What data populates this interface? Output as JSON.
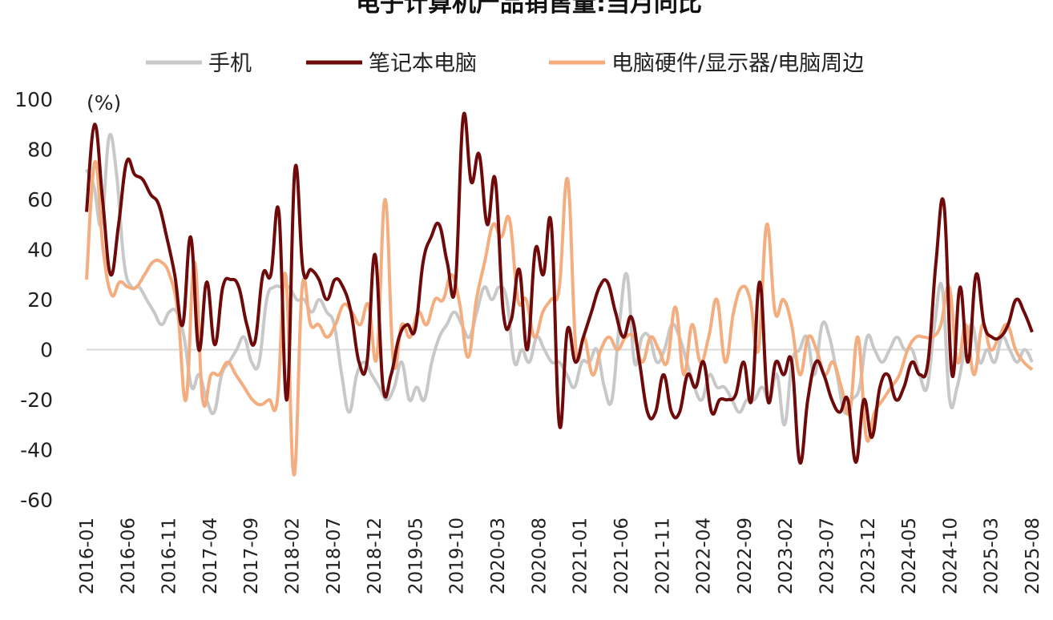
{
  "chart_data": {
    "type": "line",
    "title": "电子计算机产品销售量:当月同比",
    "unit_label": "(%)",
    "ylim": [
      -60,
      100
    ],
    "yticks": [
      "100",
      "80",
      "60",
      "40",
      "20",
      "0",
      "-20",
      "-40",
      "-60"
    ],
    "x_tick_labels": [
      "2016-01",
      "2016-06",
      "2016-11",
      "2017-04",
      "2017-09",
      "2018-02",
      "2018-07",
      "2018-12",
      "2019-05",
      "2019-10",
      "2020-03",
      "2020-08",
      "2021-01",
      "2021-06",
      "2021-11",
      "2022-04",
      "2022-09",
      "2023-02",
      "2023-07",
      "2023-12",
      "2024-05",
      "2024-10",
      "2025-03",
      "2025-08"
    ],
    "x_start": "2016-01",
    "x_end": "2025-08",
    "series": [
      {
        "name": "手机",
        "color": "#c8c8c8",
        "values": [
          72,
          65,
          50,
          85,
          70,
          35,
          25,
          25,
          20,
          15,
          10,
          15,
          15,
          5,
          -15,
          -10,
          -20,
          -25,
          -10,
          -5,
          0,
          5,
          -5,
          -5,
          20,
          25,
          25,
          25,
          20,
          20,
          15,
          20,
          15,
          10,
          -10,
          -25,
          -10,
          -5,
          -10,
          -15,
          -20,
          -15,
          -5,
          -20,
          -15,
          -20,
          -5,
          5,
          10,
          15,
          10,
          5,
          15,
          25,
          20,
          25,
          20,
          -5,
          0,
          -5,
          5,
          0,
          -5,
          -5,
          -10,
          -15,
          -5,
          -5,
          0,
          -15,
          -20,
          10,
          30,
          -5,
          5,
          5,
          -5,
          0,
          10,
          5,
          -5,
          -15,
          -20,
          -10,
          -15,
          -15,
          -20,
          -25,
          -20,
          -20,
          -15,
          -20,
          -10,
          -30,
          -5,
          0,
          5,
          -10,
          10,
          5,
          -10,
          -25,
          -20,
          -15,
          5,
          0,
          -5,
          0,
          5,
          0,
          0,
          -10,
          -15,
          10,
          25,
          -20,
          -15,
          0,
          10,
          -5,
          0,
          -5,
          5,
          0,
          -5,
          0,
          -5
        ]
      },
      {
        "name": "笔记本电脑",
        "color": "#6e0a0a",
        "values": [
          55,
          90,
          60,
          30,
          50,
          75,
          70,
          68,
          62,
          58,
          45,
          30,
          10,
          45,
          0,
          27,
          2,
          25,
          28,
          25,
          10,
          3,
          30,
          30,
          55,
          -20,
          72,
          32,
          32,
          28,
          20,
          28,
          25,
          15,
          -5,
          -5,
          38,
          -15,
          -10,
          5,
          10,
          8,
          35,
          45,
          50,
          35,
          25,
          93,
          67,
          78,
          50,
          68,
          15,
          12,
          32,
          0,
          40,
          30,
          50,
          -30,
          8,
          -5,
          5,
          15,
          25,
          27,
          15,
          5,
          13,
          -5,
          -25,
          -25,
          -10,
          -25,
          -25,
          -10,
          -15,
          -5,
          -25,
          -20,
          -20,
          -18,
          -5,
          -20,
          27,
          -20,
          -5,
          -10,
          -5,
          -45,
          -20,
          -5,
          -10,
          -20,
          -25,
          -20,
          -45,
          -20,
          -35,
          -15,
          -10,
          -20,
          -15,
          -5,
          -10,
          -5,
          35,
          58,
          -10,
          25,
          -5,
          30,
          10,
          5,
          5,
          10,
          20,
          15,
          7
        ]
      },
      {
        "name": "电脑硬件/显示器/电脑周边",
        "color": "#f4ad7f",
        "values": [
          28,
          75,
          40,
          22,
          27,
          25,
          25,
          30,
          35,
          35,
          30,
          15,
          -20,
          35,
          -20,
          -10,
          -10,
          -5,
          -10,
          -15,
          -20,
          -22,
          -20,
          -20,
          30,
          -50,
          25,
          10,
          10,
          5,
          10,
          18,
          15,
          10,
          18,
          -3,
          60,
          -5,
          10,
          5,
          15,
          10,
          20,
          20,
          30,
          18,
          -3,
          20,
          35,
          50,
          45,
          52,
          20,
          20,
          5,
          15,
          20,
          25,
          68,
          0,
          5,
          -10,
          0,
          5,
          0,
          5,
          5,
          -5,
          5,
          0,
          -5,
          17,
          -10,
          10,
          -5,
          5,
          20,
          -5,
          15,
          25,
          20,
          0,
          50,
          15,
          20,
          10,
          -10,
          5,
          0,
          -10,
          -5,
          -15,
          -25,
          5,
          -35,
          -25,
          -20,
          -15,
          -10,
          0,
          5,
          5,
          5,
          10,
          25,
          -5,
          10,
          -10,
          10,
          0,
          5,
          10,
          0,
          -5,
          -8
        ]
      }
    ]
  }
}
